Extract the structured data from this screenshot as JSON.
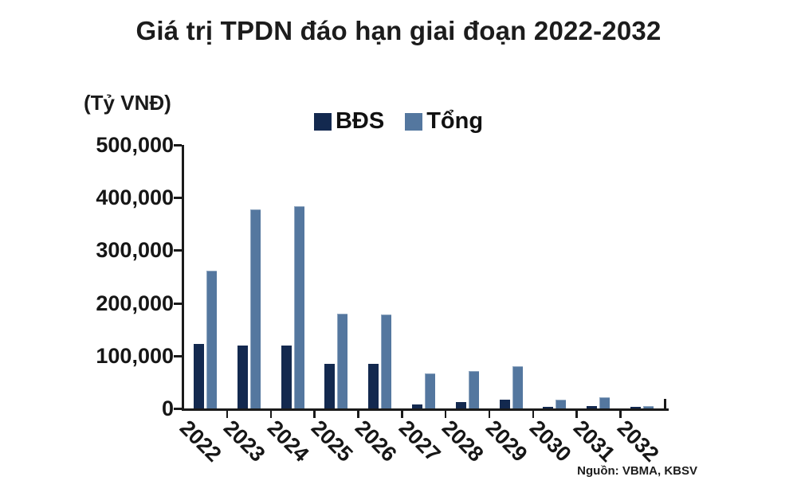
{
  "title": "Giá trị TPDN đáo hạn giai đoạn 2022-2032",
  "source": "Nguồn: VBMA, KBSV",
  "chart_data": {
    "type": "bar",
    "title": "Giá trị TPDN đáo hạn giai đoạn 2022-2032",
    "unit_label": "(Tỷ VNĐ)",
    "xlabel": "",
    "ylabel": "Tỷ VNĐ",
    "categories": [
      "2022",
      "2023",
      "2024",
      "2025",
      "2026",
      "2027",
      "2028",
      "2029",
      "2030",
      "2031",
      "2032"
    ],
    "series": [
      {
        "name": "BĐS",
        "color": "#13294f",
        "values": [
          123000,
          119000,
          120000,
          85000,
          85000,
          8000,
          12000,
          17000,
          3000,
          5000,
          3000
        ]
      },
      {
        "name": "Tổng",
        "color": "#54779f",
        "values": [
          262000,
          377000,
          383000,
          180000,
          179000,
          67000,
          71000,
          80000,
          16000,
          21000,
          5000
        ]
      }
    ],
    "ylim": [
      0,
      500000
    ],
    "y_tick_step": 100000,
    "y_tick_labels": [
      "0",
      "100,000",
      "200,000",
      "300,000",
      "400,000",
      "500,000"
    ],
    "legend_position": "top-center",
    "grid": false
  }
}
